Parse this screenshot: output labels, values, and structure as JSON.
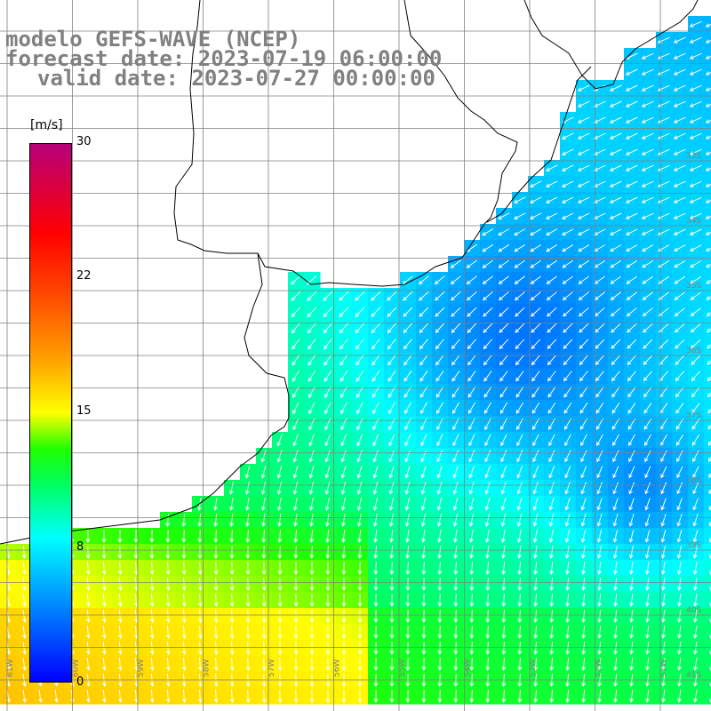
{
  "title": {
    "line1": "modelo GEFS-WAVE (NCEP)",
    "line2": "forecast date: 2023-07-19 06:00:00",
    "line3": "valid date: 2023-07-27 00:00:00"
  },
  "colorbar": {
    "unit": "[m/s]",
    "ticks": [
      {
        "label": "30",
        "value": 30
      },
      {
        "label": "22",
        "value": 22
      },
      {
        "label": "15",
        "value": 15
      },
      {
        "label": "8",
        "value": 8
      },
      {
        "label": "0",
        "value": 0
      }
    ],
    "min": 0,
    "max": 30,
    "stops": [
      {
        "value": 0,
        "color": "#0000ff"
      },
      {
        "value": 4,
        "color": "#0080ff"
      },
      {
        "value": 8,
        "color": "#00ffff"
      },
      {
        "value": 11,
        "color": "#00ff60"
      },
      {
        "value": 13,
        "color": "#20ff00"
      },
      {
        "value": 15,
        "color": "#ffff00"
      },
      {
        "value": 18,
        "color": "#ffa000"
      },
      {
        "value": 22,
        "color": "#ff4000"
      },
      {
        "value": 25,
        "color": "#ff0000"
      },
      {
        "value": 30,
        "color": "#b8007a"
      }
    ]
  },
  "grid": {
    "lon_labels": [
      "61W",
      "60W",
      "59W",
      "58W",
      "57W",
      "56W",
      "55W",
      "54W",
      "53W",
      "52W",
      "51W"
    ],
    "lat_labels": [
      "33S",
      "34S",
      "35S",
      "36S",
      "37S",
      "38S",
      "39S",
      "40S",
      "41S"
    ]
  },
  "field": {
    "variable": "wind speed and direction",
    "units": "m/s"
  }
}
